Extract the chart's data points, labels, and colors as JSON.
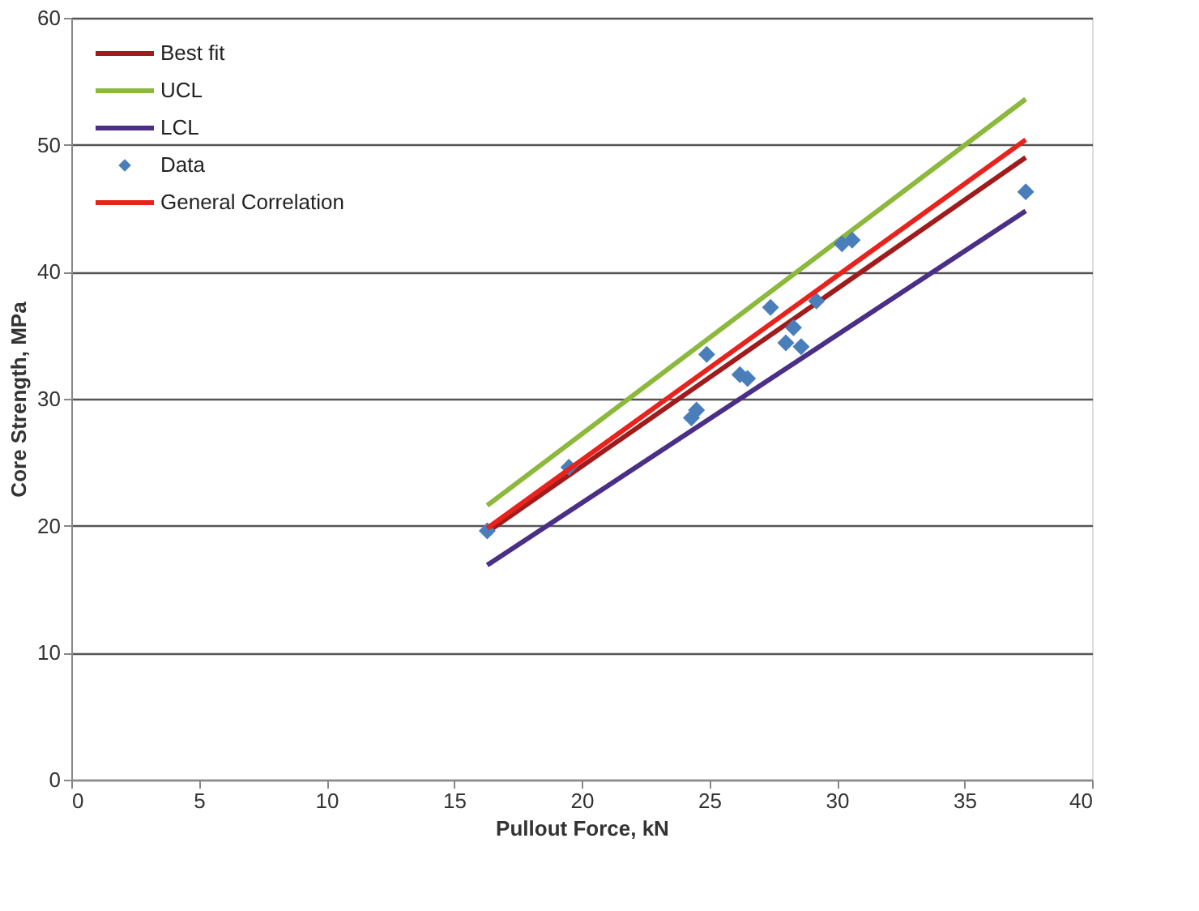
{
  "chart_data": {
    "type": "scatter",
    "xlabel": "Pullout Force, kN",
    "ylabel": "Core Strength, MPa",
    "xlim": [
      0,
      40
    ],
    "xticks": [
      0,
      5,
      10,
      15,
      20,
      25,
      30,
      35,
      40
    ],
    "ylim": [
      0,
      60
    ],
    "yticks": [
      0,
      10,
      20,
      30,
      40,
      50,
      60
    ],
    "grid": "y",
    "legend": "top left",
    "series": [
      {
        "name": "Best fit",
        "type": "line",
        "color": "#a01c1c",
        "marker": "none",
        "x": [
          16.3,
          37.4
        ],
        "values": [
          19.5,
          49.0
        ]
      },
      {
        "name": "UCL",
        "type": "line",
        "color": "#8cb83c",
        "marker": "none",
        "x": [
          16.3,
          37.4
        ],
        "values": [
          21.6,
          53.6
        ]
      },
      {
        "name": "LCL",
        "type": "line",
        "color": "#4b2f86",
        "marker": "none",
        "x": [
          16.3,
          37.4
        ],
        "values": [
          16.9,
          44.8
        ]
      },
      {
        "name": "Data",
        "color": "#4a7ebb",
        "marker": "diamond",
        "x": [
          16.3,
          19.5,
          24.9,
          24.5,
          24.3,
          26.2,
          26.5,
          27.4,
          28.3,
          28.0,
          28.6,
          29.2,
          30.2,
          30.6,
          37.4
        ],
        "values": [
          19.6,
          24.6,
          33.5,
          29.1,
          28.5,
          31.9,
          31.6,
          37.2,
          35.6,
          34.4,
          34.1,
          37.7,
          42.2,
          42.5,
          46.3
        ]
      },
      {
        "name": "General Correlation",
        "type": "line",
        "color": "#e8221c",
        "marker": "none",
        "x": [
          16.3,
          37.4
        ],
        "values": [
          19.8,
          50.4
        ]
      }
    ]
  }
}
